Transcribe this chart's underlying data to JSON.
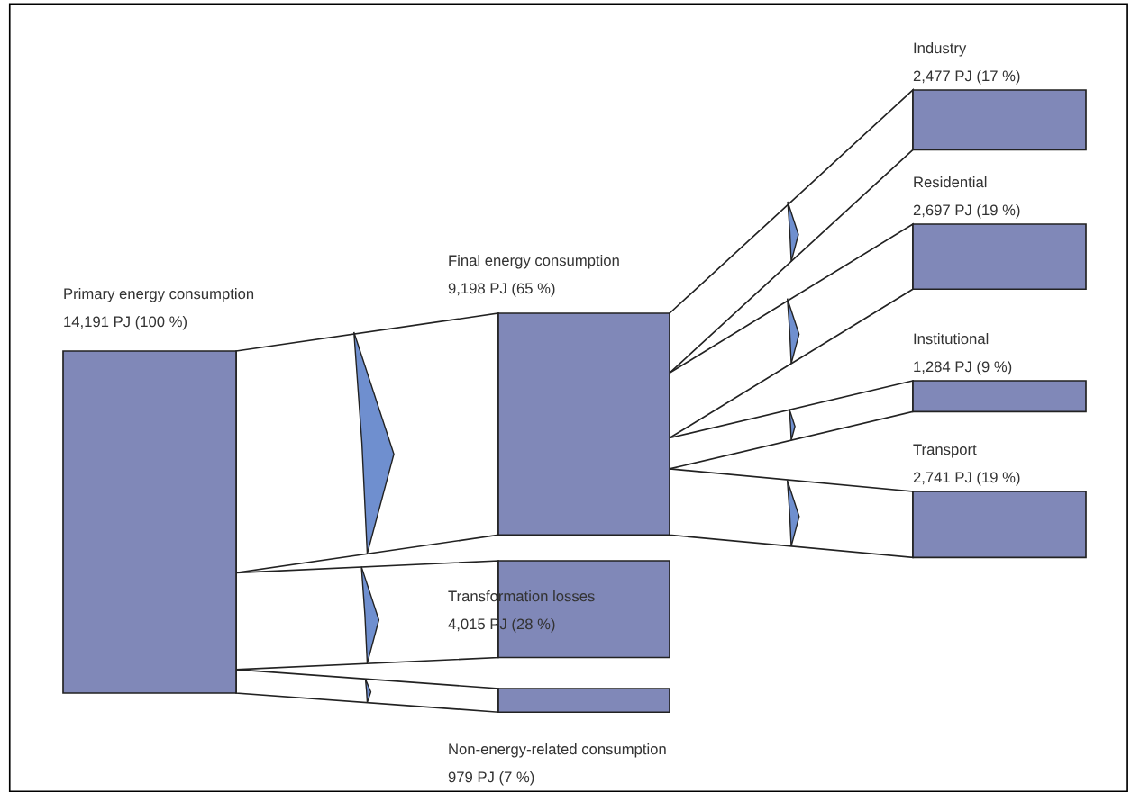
{
  "chart_data": {
    "type": "other",
    "categories": [
      "Primary energy consumption",
      "Final energy consumption",
      "Transformation losses",
      "Non-energy-related consumption",
      "Industry",
      "Residential",
      "Institutional",
      "Transport"
    ],
    "values": [
      14191,
      9198,
      4015,
      979,
      2477,
      2697,
      1284,
      2741
    ],
    "value_labels": [
      "14,191 PJ (100 %)",
      "9,198 PJ (65 %)",
      "4,015 PJ (28 %)",
      "979 PJ (7 %)",
      "2,477 PJ (17 %)",
      "2,697 PJ (19 %)",
      "1,284 PJ (9 %)",
      "2,741 PJ (19 %)"
    ],
    "color": "#8088b8"
  }
}
